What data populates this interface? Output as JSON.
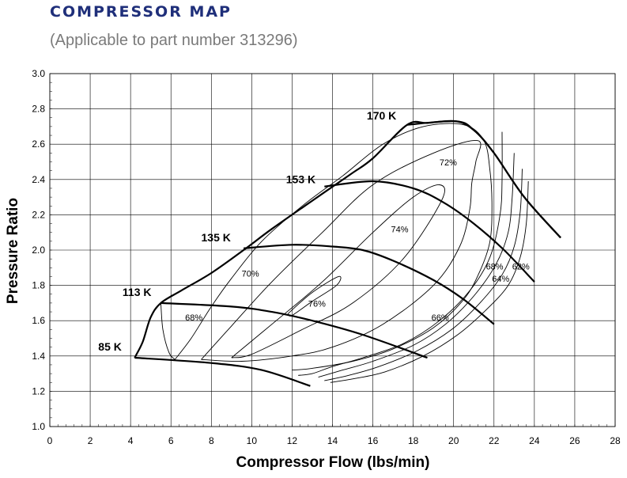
{
  "header": {
    "title": "COMPRESSOR MAP",
    "subtitle": "(Applicable to part number 313296)"
  },
  "colors": {
    "title": "#1f2f7a",
    "subtitle": "#7a7a7a",
    "grid": "#000000",
    "line": "#000000"
  },
  "chart_data": {
    "type": "line",
    "xlabel": "Compressor Flow (lbs/min)",
    "ylabel": "Pressure Ratio",
    "xlim": [
      0,
      28
    ],
    "ylim": [
      1.0,
      3.0
    ],
    "xticks": [
      "0",
      "2",
      "4",
      "6",
      "8",
      "10",
      "12",
      "14",
      "16",
      "18",
      "20",
      "22",
      "24",
      "26",
      "28"
    ],
    "yticks": [
      "1.0",
      "1.2",
      "1.4",
      "1.6",
      "1.8",
      "2.0",
      "2.2",
      "2.4",
      "2.6",
      "2.8",
      "3.0"
    ],
    "grid": true,
    "surge_line": [
      [
        4.2,
        1.39
      ],
      [
        4.6,
        1.48
      ],
      [
        5.0,
        1.62
      ],
      [
        5.5,
        1.7
      ],
      [
        6.5,
        1.77
      ],
      [
        8.0,
        1.87
      ],
      [
        9.6,
        2.0
      ],
      [
        11.0,
        2.12
      ],
      [
        13.0,
        2.28
      ],
      [
        14.9,
        2.43
      ],
      [
        16.0,
        2.52
      ],
      [
        17.7,
        2.71
      ],
      [
        18.7,
        2.72
      ],
      [
        20.1,
        2.73
      ],
      [
        21.0,
        2.68
      ],
      [
        22.0,
        2.55
      ],
      [
        23.5,
        2.3
      ],
      [
        25.3,
        2.07
      ]
    ],
    "speed_lines": [
      {
        "label": "85 K",
        "points": [
          [
            4.2,
            1.39
          ],
          [
            8.0,
            1.36
          ],
          [
            10.5,
            1.32
          ],
          [
            12.9,
            1.23
          ]
        ]
      },
      {
        "label": "113 K",
        "points": [
          [
            5.5,
            1.7
          ],
          [
            9.0,
            1.68
          ],
          [
            11.0,
            1.65
          ],
          [
            13.0,
            1.6
          ],
          [
            15.5,
            1.52
          ],
          [
            18.7,
            1.39
          ]
        ]
      },
      {
        "label": "135 K",
        "points": [
          [
            9.6,
            2.01
          ],
          [
            12.0,
            2.03
          ],
          [
            14.0,
            2.02
          ],
          [
            15.5,
            2.0
          ],
          [
            17.0,
            1.94
          ],
          [
            19.0,
            1.83
          ],
          [
            20.5,
            1.72
          ],
          [
            22.0,
            1.58
          ]
        ]
      },
      {
        "label": "153 K",
        "points": [
          [
            13.6,
            2.36
          ],
          [
            16.0,
            2.39
          ],
          [
            18.0,
            2.35
          ],
          [
            19.5,
            2.27
          ],
          [
            21.0,
            2.15
          ],
          [
            22.5,
            2.0
          ],
          [
            24.0,
            1.82
          ]
        ]
      },
      {
        "label": "170 K",
        "points": [
          [
            17.7,
            2.71
          ],
          [
            20.1,
            2.73
          ],
          [
            21.0,
            2.68
          ],
          [
            22.0,
            2.55
          ],
          [
            23.5,
            2.3
          ],
          [
            25.3,
            2.07
          ]
        ]
      }
    ],
    "efficiency_islands": [
      {
        "label": "76%",
        "points": [
          [
            11.8,
            1.64
          ],
          [
            13.0,
            1.76
          ],
          [
            14.3,
            1.85
          ],
          [
            14.2,
            1.8
          ],
          [
            13.0,
            1.71
          ],
          [
            12.0,
            1.63
          ],
          [
            11.8,
            1.64
          ]
        ]
      },
      {
        "label": "74%",
        "points": [
          [
            9.0,
            1.39
          ],
          [
            11.0,
            1.58
          ],
          [
            13.5,
            1.82
          ],
          [
            16.0,
            2.1
          ],
          [
            18.0,
            2.3
          ],
          [
            19.3,
            2.37
          ],
          [
            19.4,
            2.28
          ],
          [
            17.5,
            1.95
          ],
          [
            15.0,
            1.7
          ],
          [
            12.5,
            1.55
          ],
          [
            10.0,
            1.41
          ],
          [
            9.0,
            1.39
          ]
        ]
      },
      {
        "label": "72%",
        "points": [
          [
            7.5,
            1.38
          ],
          [
            9.0,
            1.57
          ],
          [
            11.0,
            1.82
          ],
          [
            13.5,
            2.1
          ],
          [
            16.0,
            2.37
          ],
          [
            19.0,
            2.55
          ],
          [
            21.2,
            2.62
          ],
          [
            21.1,
            2.5
          ],
          [
            20.9,
            2.38
          ],
          [
            20.8,
            2.23
          ],
          [
            20.3,
            2.02
          ],
          [
            19.0,
            1.8
          ],
          [
            16.5,
            1.58
          ],
          [
            14.0,
            1.45
          ],
          [
            12.0,
            1.4
          ],
          [
            9.5,
            1.37
          ],
          [
            7.5,
            1.38
          ]
        ]
      },
      {
        "label": "70%",
        "points": [
          [
            6.2,
            1.38
          ],
          [
            7.0,
            1.5
          ],
          [
            8.0,
            1.68
          ],
          [
            9.0,
            1.84
          ],
          [
            10.5,
            2.05
          ],
          [
            12.5,
            2.25
          ],
          [
            14.5,
            2.42
          ],
          [
            16.5,
            2.6
          ],
          [
            18.5,
            2.7
          ],
          [
            20.5,
            2.71
          ],
          [
            21.5,
            2.62
          ],
          [
            21.8,
            2.45
          ],
          [
            21.9,
            2.25
          ],
          [
            21.8,
            2.05
          ],
          [
            21.3,
            1.88
          ],
          [
            20.5,
            1.72
          ],
          [
            19.0,
            1.56
          ],
          [
            17.0,
            1.44
          ],
          [
            15.0,
            1.37
          ],
          [
            13.0,
            1.33
          ],
          [
            12.0,
            1.32
          ]
        ]
      },
      {
        "label": "68%",
        "points": [
          [
            5.5,
            1.7
          ],
          [
            5.6,
            1.55
          ],
          [
            5.9,
            1.42
          ],
          [
            6.2,
            1.38
          ]
        ]
      },
      {
        "label": "68%",
        "points": [
          [
            22.4,
            2.67
          ],
          [
            22.4,
            2.4
          ],
          [
            22.3,
            2.2
          ],
          [
            21.8,
            1.96
          ],
          [
            20.8,
            1.77
          ],
          [
            19.3,
            1.6
          ],
          [
            17.5,
            1.47
          ],
          [
            15.5,
            1.39
          ],
          [
            14.0,
            1.34
          ],
          [
            13.0,
            1.3
          ],
          [
            12.3,
            1.29
          ]
        ]
      },
      {
        "label": "66%",
        "points": [
          [
            23.0,
            2.55
          ],
          [
            22.9,
            2.3
          ],
          [
            22.7,
            2.1
          ],
          [
            22.1,
            1.92
          ],
          [
            21.0,
            1.74
          ],
          [
            19.6,
            1.58
          ],
          [
            18.0,
            1.46
          ],
          [
            16.0,
            1.37
          ],
          [
            14.5,
            1.32
          ],
          [
            13.3,
            1.28
          ]
        ]
      },
      {
        "label": "64%",
        "points": [
          [
            23.4,
            2.46
          ],
          [
            23.3,
            2.22
          ],
          [
            23.0,
            2.02
          ],
          [
            22.4,
            1.86
          ],
          [
            21.3,
            1.7
          ],
          [
            19.9,
            1.55
          ],
          [
            18.2,
            1.43
          ],
          [
            16.3,
            1.34
          ],
          [
            14.8,
            1.29
          ],
          [
            13.6,
            1.26
          ]
        ]
      },
      {
        "label": "62%",
        "points": [
          [
            23.7,
            2.39
          ],
          [
            23.6,
            2.15
          ],
          [
            23.3,
            1.96
          ],
          [
            22.7,
            1.8
          ],
          [
            21.6,
            1.66
          ],
          [
            20.2,
            1.52
          ],
          [
            18.5,
            1.4
          ],
          [
            16.6,
            1.31
          ],
          [
            15.0,
            1.27
          ],
          [
            13.9,
            1.25
          ]
        ]
      }
    ],
    "annotations": [
      {
        "text": "170 K",
        "x": 15.7,
        "y": 2.74,
        "bold": true
      },
      {
        "text": "153 K",
        "x": 11.7,
        "y": 2.38,
        "bold": true
      },
      {
        "text": "135 K",
        "x": 7.5,
        "y": 2.05,
        "bold": true
      },
      {
        "text": "113 K",
        "x": 3.6,
        "y": 1.74,
        "bold": true
      },
      {
        "text": "85 K",
        "x": 2.4,
        "y": 1.43,
        "bold": true
      },
      {
        "text": "72%",
        "x": 19.3,
        "y": 2.48,
        "bold": false
      },
      {
        "text": "74%",
        "x": 16.9,
        "y": 2.1,
        "bold": false
      },
      {
        "text": "70%",
        "x": 9.5,
        "y": 1.85,
        "bold": false
      },
      {
        "text": "76%",
        "x": 12.8,
        "y": 1.68,
        "bold": false
      },
      {
        "text": "68%",
        "x": 6.7,
        "y": 1.6,
        "bold": false
      },
      {
        "text": "66%",
        "x": 18.9,
        "y": 1.6,
        "bold": false
      },
      {
        "text": "68%",
        "x": 21.6,
        "y": 1.89,
        "bold": false
      },
      {
        "text": "64%",
        "x": 21.9,
        "y": 1.82,
        "bold": false
      },
      {
        "text": "62%",
        "x": 22.9,
        "y": 1.89,
        "bold": false
      }
    ]
  }
}
